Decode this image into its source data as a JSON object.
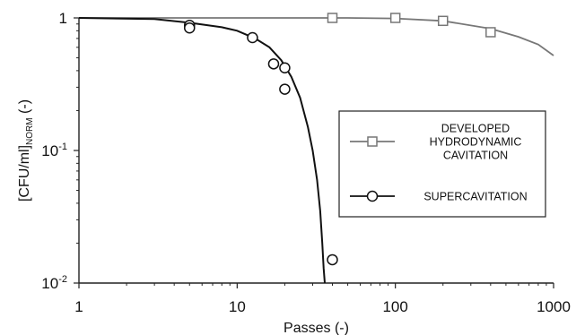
{
  "chart_data": {
    "type": "scatter",
    "title": "",
    "xlabel": "Passes (-)",
    "ylabel_main": "[CFU/ml]",
    "ylabel_sub": "NORM",
    "ylabel_tail": " (-)",
    "xscale": "log",
    "yscale": "log",
    "xlim": [
      1,
      1000
    ],
    "ylim": [
      0.01,
      1
    ],
    "x_ticks": [
      {
        "value": 1,
        "label": "1"
      },
      {
        "value": 10,
        "label": "10"
      },
      {
        "value": 100,
        "label": "100"
      },
      {
        "value": 1000,
        "label": "1000"
      }
    ],
    "y_ticks": [
      {
        "value": 1,
        "label": "1",
        "exp": ""
      },
      {
        "value": 0.1,
        "label": "10",
        "exp": "-1"
      },
      {
        "value": 0.01,
        "label": "10",
        "exp": "-2"
      }
    ],
    "grid": false,
    "legend_position": "right",
    "series": [
      {
        "name": "DEVELOPED HYDRODYNAMIC CAVITATION",
        "legend_lines": [
          "DEVELOPED",
          "HYDRODYNAMIC",
          "CAVITATION"
        ],
        "marker": "square",
        "color": "#777777",
        "x": [
          40,
          100,
          200,
          400
        ],
        "y": [
          1.0,
          1.0,
          0.95,
          0.78
        ],
        "fit": {
          "x": [
            1,
            10,
            50,
            100,
            200,
            400,
            600,
            800,
            1000
          ],
          "y": [
            1.0,
            1.0,
            1.0,
            0.99,
            0.95,
            0.83,
            0.72,
            0.63,
            0.52
          ]
        }
      },
      {
        "name": "SUPERCAVITATION",
        "legend_lines": [
          "SUPERCAVITATION"
        ],
        "marker": "circle",
        "color": "#111111",
        "x": [
          5,
          5,
          12.5,
          17,
          20,
          20,
          40
        ],
        "y": [
          0.88,
          0.84,
          0.71,
          0.45,
          0.42,
          0.29,
          0.015
        ],
        "fit": {
          "x": [
            1,
            3,
            5,
            8,
            10,
            13,
            16,
            19,
            22,
            25,
            28,
            30,
            32,
            33.5,
            34.5,
            35.2,
            35.8
          ],
          "y": [
            1.0,
            0.98,
            0.92,
            0.85,
            0.8,
            0.7,
            0.6,
            0.48,
            0.36,
            0.25,
            0.15,
            0.1,
            0.06,
            0.035,
            0.02,
            0.013,
            0.01
          ]
        }
      }
    ]
  }
}
